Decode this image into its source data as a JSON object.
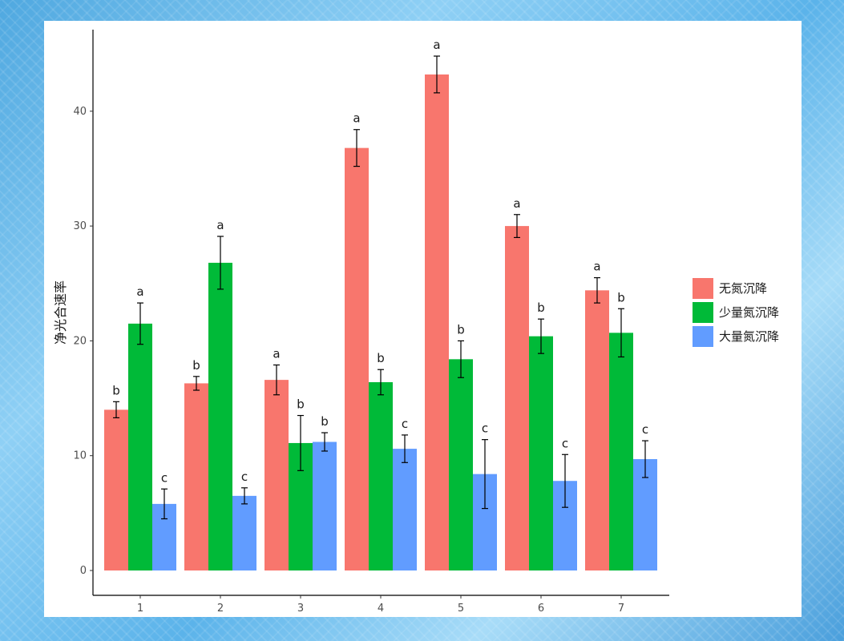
{
  "chart_data": {
    "type": "bar",
    "title": "",
    "xlabel": "",
    "ylabel": "净光合速率",
    "ylim": [
      0,
      45
    ],
    "yticks": [
      0,
      10,
      20,
      30,
      40
    ],
    "grid": false,
    "legend_position": "right",
    "categories": [
      "1",
      "2",
      "3",
      "4",
      "5",
      "6",
      "7"
    ],
    "series": [
      {
        "name": "无氮沉降",
        "color": "#F8766D",
        "values": [
          14.0,
          16.3,
          16.6,
          36.8,
          43.2,
          30.0,
          24.4
        ],
        "errors": [
          0.7,
          0.6,
          1.3,
          1.6,
          1.6,
          1.0,
          1.1
        ],
        "sig_labels": [
          "b",
          "b",
          "a",
          "a",
          "a",
          "a",
          "a"
        ]
      },
      {
        "name": "少量氮沉降",
        "color": "#00BA38",
        "values": [
          21.5,
          26.8,
          11.1,
          16.4,
          18.4,
          20.4,
          20.7
        ],
        "errors": [
          1.8,
          2.3,
          2.4,
          1.1,
          1.6,
          1.5,
          2.1
        ],
        "sig_labels": [
          "a",
          "a",
          "b",
          "b",
          "b",
          "b",
          "b"
        ]
      },
      {
        "name": "大量氮沉降",
        "color": "#619CFF",
        "values": [
          5.8,
          6.5,
          11.2,
          10.6,
          8.4,
          7.8,
          9.7
        ],
        "errors": [
          1.3,
          0.7,
          0.8,
          1.2,
          3.0,
          2.3,
          1.6
        ],
        "sig_labels": [
          "c",
          "c",
          "b",
          "c",
          "c",
          "c",
          "c"
        ]
      }
    ]
  }
}
